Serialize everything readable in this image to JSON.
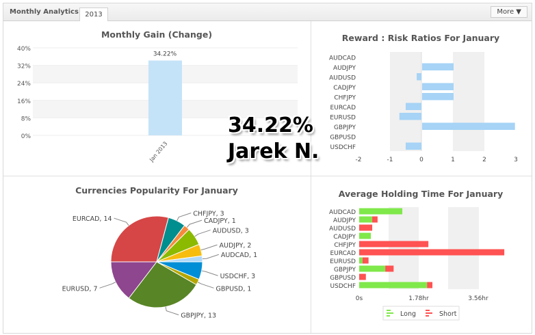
{
  "header": {
    "title": "Monthly Analytics",
    "tab": "2013",
    "more_label": "More"
  },
  "overlay": {
    "gain": "34.22%",
    "name": "Jarek N."
  },
  "chart_data": [
    {
      "type": "bar",
      "title": "Monthly Gain (Change)",
      "categories": [
        "Jan 2013"
      ],
      "values": [
        34.22
      ],
      "data_labels": [
        "34.22%"
      ],
      "ylim": [
        0,
        40
      ],
      "yticks": [
        "0%",
        "8%",
        "16%",
        "24%",
        "32%",
        "40%"
      ],
      "color": "#c5e3f8"
    },
    {
      "type": "bar",
      "orientation": "horizontal",
      "title": "Reward : Risk Ratios For January",
      "categories": [
        "AUDCAD",
        "AUDJPY",
        "AUDUSD",
        "CADJPY",
        "CHFJPY",
        "EURCAD",
        "EURUSD",
        "GBPJPY",
        "GBPUSD",
        "USDCHF"
      ],
      "values": [
        0,
        1,
        -0.15,
        1,
        1,
        -0.5,
        -0.7,
        2.95,
        0,
        -0.5
      ],
      "xlim": [
        -2,
        3
      ],
      "xticks": [
        "-2",
        "-1",
        "0",
        "1",
        "2",
        "3"
      ],
      "color": "#a6d3f6"
    },
    {
      "type": "pie",
      "title": "Currencies Popularity For January",
      "slices": [
        {
          "label": "EURCAD",
          "value": 14,
          "color": "#d64646"
        },
        {
          "label": "CHFJPY",
          "value": 3,
          "color": "#008e8e"
        },
        {
          "label": "CADJPY",
          "value": 1,
          "color": "#f68a3c"
        },
        {
          "label": "AUDUSD",
          "value": 3,
          "color": "#8bba00"
        },
        {
          "label": "AUDJPY",
          "value": 2,
          "color": "#f6bd0f"
        },
        {
          "label": "AUDCAD",
          "value": 1,
          "color": "#afd8f8"
        },
        {
          "label": "USDCHF",
          "value": 3,
          "color": "#008ed6"
        },
        {
          "label": "GBPUSD",
          "value": 1,
          "color": "#b5a600"
        },
        {
          "label": "GBPJPY",
          "value": 13,
          "color": "#588526"
        },
        {
          "label": "EURUSD",
          "value": 7,
          "color": "#8e468e"
        }
      ]
    },
    {
      "type": "bar",
      "orientation": "horizontal",
      "stacked": true,
      "title": "Average Holding Time For January",
      "categories": [
        "AUDCAD",
        "AUDJPY",
        "AUDUSD",
        "CADJPY",
        "CHFJPY",
        "EURCAD",
        "EURUSD",
        "GBPJPY",
        "GBPUSD",
        "USDCHF"
      ],
      "series": [
        {
          "name": "Long",
          "values": [
            1.29,
            0.39,
            0,
            0.35,
            0,
            0,
            0.1,
            0.78,
            0,
            2.03
          ],
          "color": "#7fe84a"
        },
        {
          "name": "Short",
          "values": [
            0,
            0.16,
            0.39,
            0,
            2.07,
            4.34,
            0.18,
            0.25,
            0.2,
            0.16
          ],
          "color": "#ff5252"
        }
      ],
      "xlim": [
        0,
        4.5
      ],
      "xticks": [
        "0s",
        "1.78hr",
        "3.56hr"
      ],
      "legend": "bottom"
    }
  ]
}
